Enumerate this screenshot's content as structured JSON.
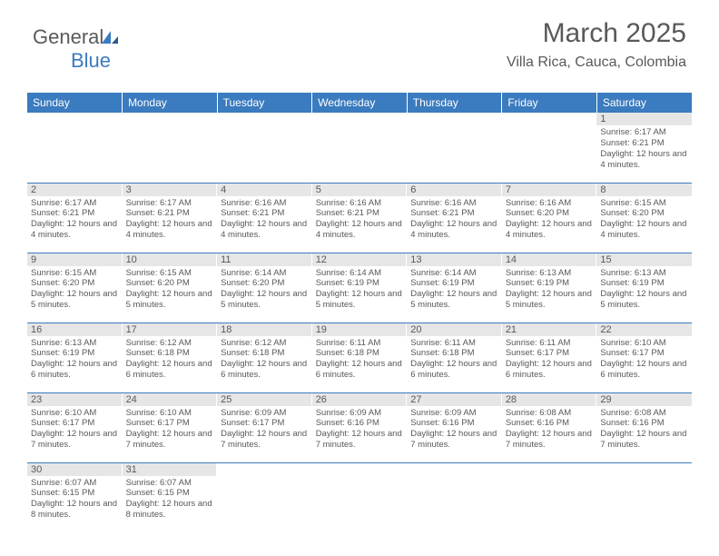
{
  "logo": {
    "text1": "General",
    "text2": "Blue"
  },
  "header": {
    "month_title": "March 2025",
    "location": "Villa Rica, Cauca, Colombia"
  },
  "colors": {
    "header_bg": "#3b7bbf",
    "header_text": "#ffffff",
    "daynum_bg": "#e6e6e6",
    "body_text": "#595959",
    "row_border": "#3b7bbf"
  },
  "weekdays": [
    "Sunday",
    "Monday",
    "Tuesday",
    "Wednesday",
    "Thursday",
    "Friday",
    "Saturday"
  ],
  "days": {
    "1": {
      "sunrise": "6:17 AM",
      "sunset": "6:21 PM",
      "daylight": "12 hours and 4 minutes."
    },
    "2": {
      "sunrise": "6:17 AM",
      "sunset": "6:21 PM",
      "daylight": "12 hours and 4 minutes."
    },
    "3": {
      "sunrise": "6:17 AM",
      "sunset": "6:21 PM",
      "daylight": "12 hours and 4 minutes."
    },
    "4": {
      "sunrise": "6:16 AM",
      "sunset": "6:21 PM",
      "daylight": "12 hours and 4 minutes."
    },
    "5": {
      "sunrise": "6:16 AM",
      "sunset": "6:21 PM",
      "daylight": "12 hours and 4 minutes."
    },
    "6": {
      "sunrise": "6:16 AM",
      "sunset": "6:21 PM",
      "daylight": "12 hours and 4 minutes."
    },
    "7": {
      "sunrise": "6:16 AM",
      "sunset": "6:20 PM",
      "daylight": "12 hours and 4 minutes."
    },
    "8": {
      "sunrise": "6:15 AM",
      "sunset": "6:20 PM",
      "daylight": "12 hours and 4 minutes."
    },
    "9": {
      "sunrise": "6:15 AM",
      "sunset": "6:20 PM",
      "daylight": "12 hours and 5 minutes."
    },
    "10": {
      "sunrise": "6:15 AM",
      "sunset": "6:20 PM",
      "daylight": "12 hours and 5 minutes."
    },
    "11": {
      "sunrise": "6:14 AM",
      "sunset": "6:20 PM",
      "daylight": "12 hours and 5 minutes."
    },
    "12": {
      "sunrise": "6:14 AM",
      "sunset": "6:19 PM",
      "daylight": "12 hours and 5 minutes."
    },
    "13": {
      "sunrise": "6:14 AM",
      "sunset": "6:19 PM",
      "daylight": "12 hours and 5 minutes."
    },
    "14": {
      "sunrise": "6:13 AM",
      "sunset": "6:19 PM",
      "daylight": "12 hours and 5 minutes."
    },
    "15": {
      "sunrise": "6:13 AM",
      "sunset": "6:19 PM",
      "daylight": "12 hours and 5 minutes."
    },
    "16": {
      "sunrise": "6:13 AM",
      "sunset": "6:19 PM",
      "daylight": "12 hours and 6 minutes."
    },
    "17": {
      "sunrise": "6:12 AM",
      "sunset": "6:18 PM",
      "daylight": "12 hours and 6 minutes."
    },
    "18": {
      "sunrise": "6:12 AM",
      "sunset": "6:18 PM",
      "daylight": "12 hours and 6 minutes."
    },
    "19": {
      "sunrise": "6:11 AM",
      "sunset": "6:18 PM",
      "daylight": "12 hours and 6 minutes."
    },
    "20": {
      "sunrise": "6:11 AM",
      "sunset": "6:18 PM",
      "daylight": "12 hours and 6 minutes."
    },
    "21": {
      "sunrise": "6:11 AM",
      "sunset": "6:17 PM",
      "daylight": "12 hours and 6 minutes."
    },
    "22": {
      "sunrise": "6:10 AM",
      "sunset": "6:17 PM",
      "daylight": "12 hours and 6 minutes."
    },
    "23": {
      "sunrise": "6:10 AM",
      "sunset": "6:17 PM",
      "daylight": "12 hours and 7 minutes."
    },
    "24": {
      "sunrise": "6:10 AM",
      "sunset": "6:17 PM",
      "daylight": "12 hours and 7 minutes."
    },
    "25": {
      "sunrise": "6:09 AM",
      "sunset": "6:17 PM",
      "daylight": "12 hours and 7 minutes."
    },
    "26": {
      "sunrise": "6:09 AM",
      "sunset": "6:16 PM",
      "daylight": "12 hours and 7 minutes."
    },
    "27": {
      "sunrise": "6:09 AM",
      "sunset": "6:16 PM",
      "daylight": "12 hours and 7 minutes."
    },
    "28": {
      "sunrise": "6:08 AM",
      "sunset": "6:16 PM",
      "daylight": "12 hours and 7 minutes."
    },
    "29": {
      "sunrise": "6:08 AM",
      "sunset": "6:16 PM",
      "daylight": "12 hours and 7 minutes."
    },
    "30": {
      "sunrise": "6:07 AM",
      "sunset": "6:15 PM",
      "daylight": "12 hours and 8 minutes."
    },
    "31": {
      "sunrise": "6:07 AM",
      "sunset": "6:15 PM",
      "daylight": "12 hours and 8 minutes."
    }
  },
  "labels": {
    "sunrise_prefix": "Sunrise: ",
    "sunset_prefix": "Sunset: ",
    "daylight_prefix": "Daylight: "
  },
  "grid": [
    [
      null,
      null,
      null,
      null,
      null,
      null,
      "1"
    ],
    [
      "2",
      "3",
      "4",
      "5",
      "6",
      "7",
      "8"
    ],
    [
      "9",
      "10",
      "11",
      "12",
      "13",
      "14",
      "15"
    ],
    [
      "16",
      "17",
      "18",
      "19",
      "20",
      "21",
      "22"
    ],
    [
      "23",
      "24",
      "25",
      "26",
      "27",
      "28",
      "29"
    ],
    [
      "30",
      "31",
      null,
      null,
      null,
      null,
      null
    ]
  ]
}
